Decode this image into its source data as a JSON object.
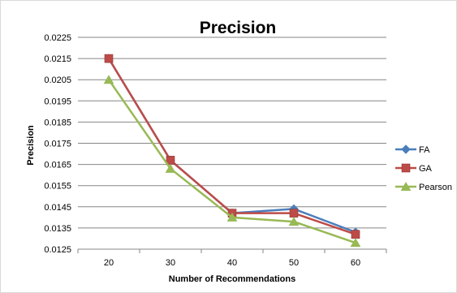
{
  "chart_data": {
    "type": "line",
    "title": "Precision",
    "xlabel": "Number of Recommendations",
    "ylabel": "Precision",
    "x": [
      20,
      30,
      40,
      50,
      60
    ],
    "x_tick_labels": [
      "20",
      "30",
      "40",
      "50",
      "60"
    ],
    "ylim": [
      0.0125,
      0.0225
    ],
    "y_tick_labels": [
      "0.0125",
      "0.0135",
      "0.0145",
      "0.0155",
      "0.0165",
      "0.0175",
      "0.0185",
      "0.0195",
      "0.0205",
      "0.0215",
      "0.0225"
    ],
    "grid": true,
    "legend_position": "right",
    "series": [
      {
        "name": "FA",
        "values": [
          0.0215,
          0.0167,
          0.0142,
          0.0144,
          0.0133
        ],
        "color": "#4a7ebb",
        "marker": "diamond"
      },
      {
        "name": "GA",
        "values": [
          0.0215,
          0.0167,
          0.0142,
          0.0142,
          0.0132
        ],
        "color": "#be4b48",
        "marker": "square"
      },
      {
        "name": "Pearson",
        "values": [
          0.0205,
          0.0163,
          0.014,
          0.0138,
          0.0128
        ],
        "color": "#98b954",
        "marker": "triangle"
      }
    ]
  }
}
